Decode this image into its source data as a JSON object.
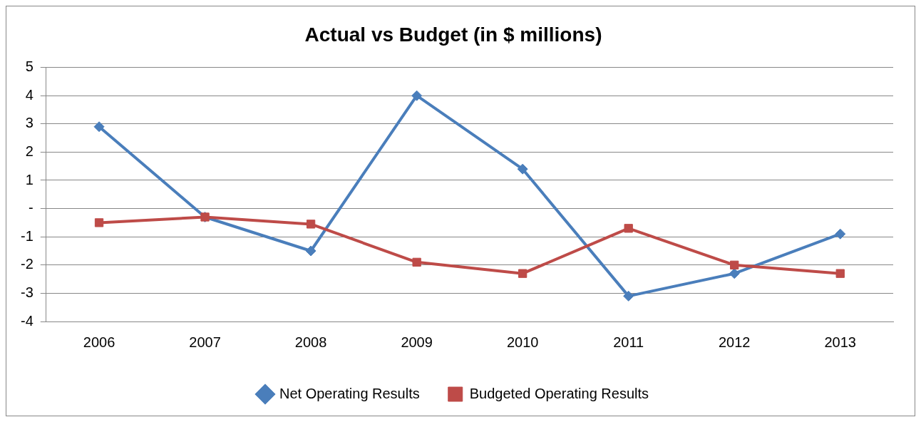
{
  "chart_data": {
    "type": "line",
    "title": "Actual vs Budget (in $ millions)",
    "categories": [
      "2006",
      "2007",
      "2008",
      "2009",
      "2010",
      "2011",
      "2012",
      "2013"
    ],
    "series": [
      {
        "name": "Net Operating Results",
        "color": "#4a7ebb",
        "marker": "diamond",
        "values": [
          2.9,
          -0.3,
          -1.5,
          4.0,
          1.4,
          -3.1,
          -2.3,
          -0.9
        ]
      },
      {
        "name": "Budgeted Operating Results",
        "color": "#be4b48",
        "marker": "square",
        "values": [
          -0.5,
          -0.3,
          -0.55,
          -1.9,
          -2.3,
          -0.7,
          -2.0,
          -2.3
        ]
      }
    ],
    "ylim": [
      -4,
      5
    ],
    "yticks": [
      -4,
      -3,
      -2,
      -1,
      {
        "value": 0,
        "label": "-"
      },
      1,
      2,
      3,
      4,
      5
    ],
    "grid": "y",
    "legend": "bottom"
  }
}
